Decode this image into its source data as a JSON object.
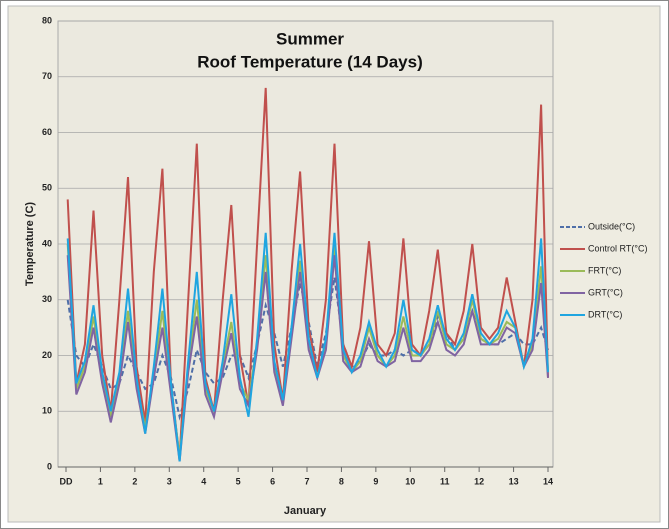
{
  "chart_data": {
    "type": "line",
    "title": [
      "Summer",
      "Roof Temperature (14 Days)"
    ],
    "xlabel": "January",
    "ylabel": "Temperature (C)",
    "xlim": [
      0,
      14
    ],
    "ylim": [
      0,
      80
    ],
    "xticks": [
      {
        "value": 0,
        "label": "DD"
      },
      1,
      2,
      3,
      4,
      5,
      6,
      7,
      8,
      9,
      10,
      11,
      12,
      13,
      14
    ],
    "yticks": [
      0,
      10,
      20,
      30,
      40,
      50,
      60,
      70,
      80
    ],
    "grid": true,
    "legend": "right",
    "x": [
      0.05,
      0.3,
      0.55,
      0.8,
      1.05,
      1.3,
      1.55,
      1.8,
      2.05,
      2.3,
      2.55,
      2.8,
      3.05,
      3.3,
      3.55,
      3.8,
      4.05,
      4.3,
      4.55,
      4.8,
      5.05,
      5.3,
      5.55,
      5.8,
      6.05,
      6.3,
      6.55,
      6.8,
      7.05,
      7.3,
      7.55,
      7.8,
      8.05,
      8.3,
      8.55,
      8.8,
      9.05,
      9.3,
      9.55,
      9.8,
      10.05,
      10.3,
      10.55,
      10.8,
      11.05,
      11.3,
      11.55,
      11.8,
      12.05,
      12.3,
      12.55,
      12.8,
      13.05,
      13.3,
      13.55,
      13.8,
      14
    ],
    "series": [
      {
        "name": "Outside(°C)",
        "color": "#4f6fa8",
        "dashed": true,
        "values": [
          30,
          20,
          18,
          22,
          18,
          14,
          15,
          20,
          17,
          14,
          15,
          20,
          16,
          9,
          14,
          21,
          17,
          15,
          16,
          20,
          20,
          16,
          22,
          29,
          24,
          18,
          25,
          33,
          26,
          18,
          24,
          34,
          22,
          18,
          19,
          22,
          20,
          20,
          21,
          20,
          21,
          20,
          22,
          27,
          24,
          21,
          23,
          28,
          23,
          22,
          22,
          23,
          24,
          22,
          22,
          25,
          21
        ]
      },
      {
        "name": "Control RT(°C)",
        "color": "#c0504d",
        "dashed": false,
        "values": [
          48,
          15,
          22,
          46,
          20,
          10,
          30,
          52,
          18,
          8,
          35,
          53.5,
          15,
          1.5,
          30,
          58,
          16,
          10,
          30,
          47,
          20,
          11,
          40,
          68,
          22,
          12,
          35,
          53,
          25,
          17,
          30,
          58,
          22,
          18,
          25,
          40.5,
          22,
          20,
          24,
          41,
          22,
          20,
          28,
          39,
          24,
          22,
          28,
          40,
          25,
          23,
          25,
          34,
          26,
          18,
          30,
          65,
          16
        ]
      },
      {
        "name": "FRT(°C)",
        "color": "#9bbb59",
        "dashed": false,
        "values": [
          40,
          14,
          18,
          27,
          16,
          9,
          16,
          28,
          15,
          7,
          17,
          28,
          14,
          2,
          18,
          30,
          14,
          10,
          18,
          26,
          15,
          12,
          22,
          38,
          18,
          12,
          24,
          37,
          22,
          16,
          22,
          40,
          20,
          17,
          19,
          25,
          20,
          18,
          20,
          27,
          20,
          20,
          22,
          28,
          22,
          21,
          23,
          30,
          23,
          22,
          23,
          26,
          25,
          18,
          22,
          36,
          17
        ]
      },
      {
        "name": "GRT(°C)",
        "color": "#8064a2",
        "dashed": false,
        "values": [
          38,
          13,
          17,
          25,
          15,
          8,
          15,
          26,
          14,
          6,
          16,
          25,
          13,
          1,
          17,
          27,
          13,
          9,
          17,
          24,
          14,
          11,
          21,
          35,
          17,
          11,
          23,
          35,
          21,
          16,
          21,
          38,
          19,
          17,
          18,
          23,
          19,
          18,
          19,
          25,
          19,
          19,
          21,
          26,
          21,
          20,
          22,
          28,
          22,
          22,
          22,
          25,
          24,
          18,
          21,
          33,
          16
        ]
      },
      {
        "name": "DRT(°C)",
        "color": "#1fa5e0",
        "dashed": false,
        "values": [
          41,
          15,
          19,
          29,
          17,
          10,
          17,
          32,
          16,
          6,
          18,
          32,
          15,
          1,
          19,
          35,
          15,
          10,
          19,
          31,
          16,
          9,
          23,
          42,
          19,
          12,
          25,
          40,
          23,
          16,
          23,
          42,
          21,
          17,
          20,
          26,
          21,
          18,
          21,
          30,
          21,
          20,
          23,
          29,
          23,
          21,
          24,
          31,
          24,
          22,
          24,
          28,
          25,
          18,
          23,
          41,
          17
        ]
      }
    ]
  }
}
